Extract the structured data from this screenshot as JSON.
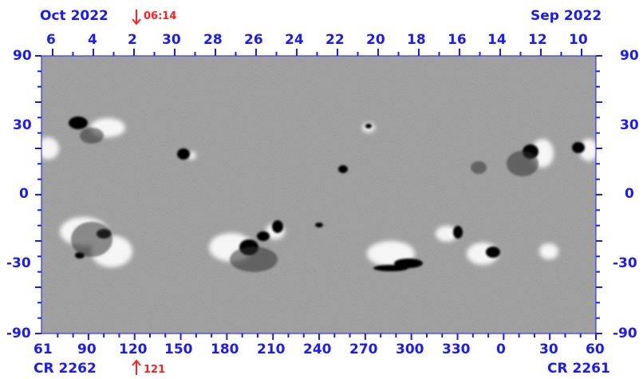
{
  "header": {
    "left_month": "Oct 2022",
    "right_month": "Sep 2022",
    "time_marker": "06:14"
  },
  "footer": {
    "left_rotation": "CR 2262",
    "right_rotation": "CR 2261",
    "longitude_marker": "121"
  },
  "axes": {
    "day_ticks": [
      "6",
      "4",
      "2",
      "30",
      "28",
      "26",
      "24",
      "22",
      "20",
      "18",
      "16",
      "14",
      "12",
      "10"
    ],
    "longitude_ticks": [
      "61",
      "90",
      "120",
      "150",
      "180",
      "210",
      "240",
      "270",
      "300",
      "330",
      "0",
      "30",
      "60"
    ],
    "latitude_ticks": [
      "90",
      "30",
      "0",
      "-30",
      "-90"
    ]
  },
  "colors": {
    "axis": "#1a1aff",
    "marker": "#ff2020",
    "map_background": "#9a9a9a"
  },
  "map": {
    "type": "synoptic magnetogram (Carrington map)",
    "longitude_range": [
      61,
      60
    ],
    "latitude_range": [
      -90,
      90
    ]
  }
}
